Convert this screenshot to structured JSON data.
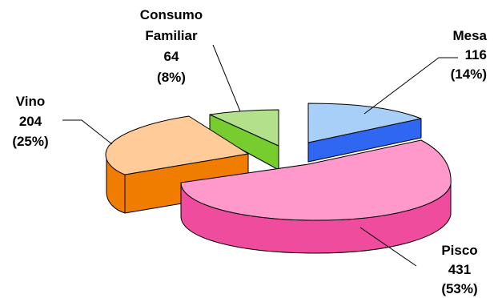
{
  "chart_data": {
    "type": "pie",
    "title": "",
    "style": "3d-exploded",
    "slices": [
      {
        "label_lines": [
          "Mesa"
        ],
        "value": 116,
        "percent": "(14%)",
        "top_color": "#a8cff7",
        "side_color": "#2f66f2"
      },
      {
        "label_lines": [
          "Pisco"
        ],
        "value": 431,
        "percent": "(53%)",
        "top_color": "#ff99cc",
        "side_color": "#f04c9e"
      },
      {
        "label_lines": [
          "Vino"
        ],
        "value": 204,
        "percent": "(25%)",
        "top_color": "#ffcc99",
        "side_color": "#f07c00"
      },
      {
        "label_lines": [
          "Consumo",
          "Familiar"
        ],
        "value": 64,
        "percent": "(8%)",
        "top_color": "#b3e08a",
        "side_color": "#77cc2e"
      }
    ]
  }
}
